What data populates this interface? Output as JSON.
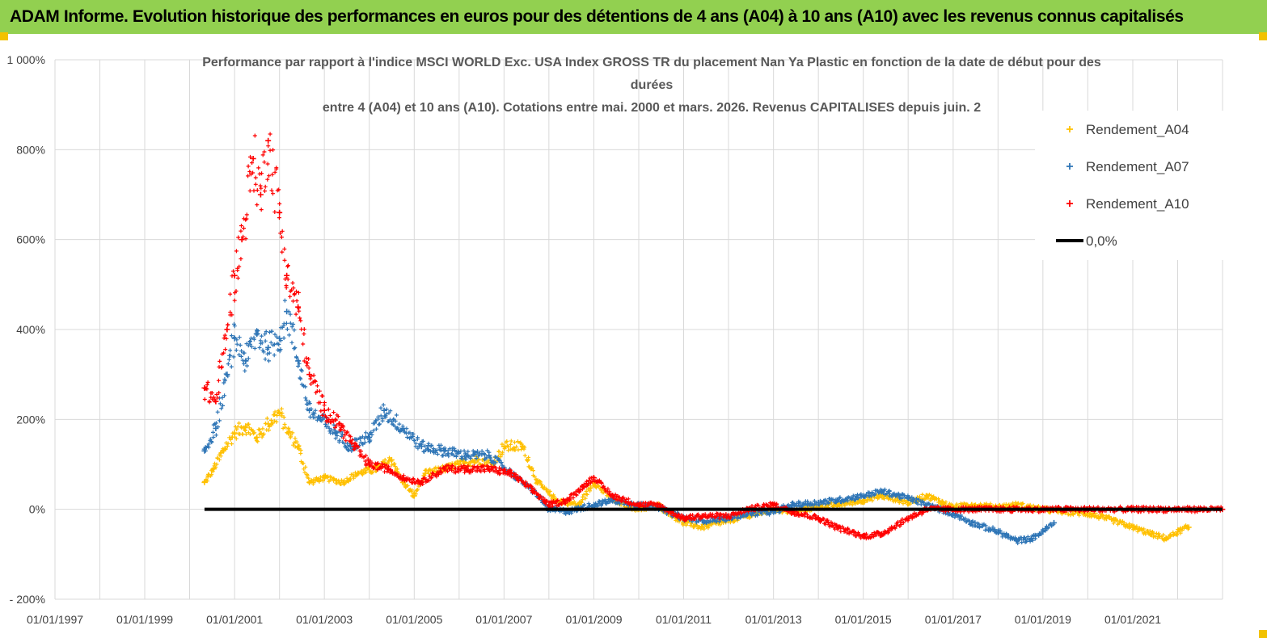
{
  "banner": {
    "text": "ADAM Informe. Evolution historique des performances en euros pour des détentions de 4 ans (A04) à 10 ans (A10) avec les revenus connus capitalisés"
  },
  "colors": {
    "banner_bg": "#92d050",
    "a04": "#ffc000",
    "a07": "#2e75b6",
    "a10": "#ff0000",
    "zero_line": "#000000",
    "grid": "#d9d9d9"
  },
  "chart_data": {
    "type": "scatter",
    "title_lines": [
      "Performance par rapport à l'indice MSCI WORLD Exc. USA Index GROSS TR  du placement Nan Ya Plastic  en fonction de la date de début pour des",
      "durées",
      "entre 4 (A04) et 10 ans (A10).  Cotations entre mai. 2000 et mars. 2026. Revenus CAPITALISES depuis juin. 2"
    ],
    "x_axis": {
      "type": "date",
      "range": [
        "1997-01-01",
        "2023-01-01"
      ],
      "tick_labels": [
        "01/01/1997",
        "01/01/1999",
        "01/01/2001",
        "01/01/2003",
        "01/01/2005",
        "01/01/2007",
        "01/01/2009",
        "01/01/2011",
        "01/01/2013",
        "01/01/2015",
        "01/01/2017",
        "01/01/2019",
        "01/01/2021"
      ],
      "gridlines": "every year"
    },
    "y_axis": {
      "range": [
        -200,
        1000
      ],
      "unit": "%",
      "tick_values": [
        -200,
        0,
        200,
        400,
        600,
        800,
        1000
      ],
      "tick_labels": [
        "- 200%",
        "0%",
        "200%",
        "400%",
        "600%",
        "800%",
        "1 000%"
      ]
    },
    "grid": true,
    "legend_position": "right",
    "series": [
      {
        "name": "Rendement_A04",
        "marker": "plus",
        "color": "#ffc000",
        "points": [
          [
            "2000-05-01",
            60
          ],
          [
            "2000-07-15",
            90
          ],
          [
            "2000-10-01",
            130
          ],
          [
            "2001-01-01",
            170
          ],
          [
            "2001-04-01",
            185
          ],
          [
            "2001-07-01",
            160
          ],
          [
            "2001-10-01",
            190
          ],
          [
            "2002-01-01",
            215
          ],
          [
            "2002-03-15",
            170
          ],
          [
            "2002-06-01",
            140
          ],
          [
            "2002-09-01",
            60
          ],
          [
            "2003-01-01",
            70
          ],
          [
            "2003-06-01",
            60
          ],
          [
            "2003-10-01",
            80
          ],
          [
            "2004-03-01",
            90
          ],
          [
            "2004-07-01",
            110
          ],
          [
            "2004-10-01",
            60
          ],
          [
            "2005-01-01",
            30
          ],
          [
            "2005-04-01",
            80
          ],
          [
            "2005-09-01",
            90
          ],
          [
            "2006-01-01",
            100
          ],
          [
            "2006-06-01",
            110
          ],
          [
            "2006-10-01",
            100
          ],
          [
            "2007-01-01",
            140
          ],
          [
            "2007-06-01",
            140
          ],
          [
            "2007-10-01",
            60
          ],
          [
            "2008-03-01",
            20
          ],
          [
            "2008-09-01",
            10
          ],
          [
            "2009-01-01",
            60
          ],
          [
            "2009-06-01",
            20
          ],
          [
            "2010-01-01",
            0
          ],
          [
            "2010-06-01",
            10
          ],
          [
            "2011-01-01",
            -30
          ],
          [
            "2011-06-01",
            -40
          ],
          [
            "2012-01-01",
            -25
          ],
          [
            "2012-06-01",
            -15
          ],
          [
            "2013-01-01",
            0
          ],
          [
            "2013-06-01",
            -5
          ],
          [
            "2014-01-01",
            5
          ],
          [
            "2014-06-01",
            10
          ],
          [
            "2015-01-01",
            20
          ],
          [
            "2015-06-01",
            30
          ],
          [
            "2016-01-01",
            15
          ],
          [
            "2016-06-01",
            30
          ],
          [
            "2017-01-01",
            5
          ],
          [
            "2017-06-01",
            10
          ],
          [
            "2018-01-01",
            5
          ],
          [
            "2018-06-01",
            10
          ],
          [
            "2019-01-01",
            0
          ],
          [
            "2019-06-01",
            -5
          ],
          [
            "2020-01-01",
            -10
          ],
          [
            "2020-06-01",
            -20
          ],
          [
            "2021-01-01",
            -40
          ],
          [
            "2021-06-01",
            -55
          ],
          [
            "2021-10-01",
            -65
          ],
          [
            "2022-01-01",
            -50
          ],
          [
            "2022-04-01",
            -40
          ]
        ]
      },
      {
        "name": "Rendement_A07",
        "marker": "plus",
        "color": "#2e75b6",
        "points": [
          [
            "2000-05-01",
            130
          ],
          [
            "2000-08-01",
            180
          ],
          [
            "2000-11-01",
            300
          ],
          [
            "2001-01-01",
            380
          ],
          [
            "2001-04-01",
            330
          ],
          [
            "2001-07-01",
            390
          ],
          [
            "2001-10-01",
            360
          ],
          [
            "2002-01-01",
            380
          ],
          [
            "2002-03-01",
            440
          ],
          [
            "2002-06-01",
            330
          ],
          [
            "2002-09-01",
            220
          ],
          [
            "2002-12-01",
            200
          ],
          [
            "2003-04-01",
            170
          ],
          [
            "2003-08-01",
            140
          ],
          [
            "2004-01-01",
            160
          ],
          [
            "2004-05-01",
            220
          ],
          [
            "2004-10-01",
            180
          ],
          [
            "2005-03-01",
            140
          ],
          [
            "2005-09-01",
            130
          ],
          [
            "2006-03-01",
            120
          ],
          [
            "2006-09-01",
            120
          ],
          [
            "2007-03-01",
            80
          ],
          [
            "2007-09-01",
            40
          ],
          [
            "2008-01-01",
            0
          ],
          [
            "2008-06-01",
            -5
          ],
          [
            "2009-01-01",
            10
          ],
          [
            "2009-06-01",
            20
          ],
          [
            "2010-01-01",
            10
          ],
          [
            "2010-06-01",
            5
          ],
          [
            "2011-01-01",
            -20
          ],
          [
            "2011-06-01",
            -25
          ],
          [
            "2012-01-01",
            -20
          ],
          [
            "2012-06-01",
            -10
          ],
          [
            "2013-01-01",
            -5
          ],
          [
            "2013-06-01",
            10
          ],
          [
            "2014-01-01",
            15
          ],
          [
            "2014-06-01",
            20
          ],
          [
            "2015-01-01",
            30
          ],
          [
            "2015-06-01",
            40
          ],
          [
            "2016-01-01",
            25
          ],
          [
            "2016-06-01",
            10
          ],
          [
            "2017-01-01",
            -10
          ],
          [
            "2017-06-01",
            -30
          ],
          [
            "2018-01-01",
            -50
          ],
          [
            "2018-06-01",
            -70
          ],
          [
            "2018-10-01",
            -65
          ],
          [
            "2019-01-01",
            -50
          ],
          [
            "2019-04-01",
            -30
          ]
        ]
      },
      {
        "name": "Rendement_A10",
        "marker": "plus",
        "color": "#ff0000",
        "points": [
          [
            "2000-05-01",
            270
          ],
          [
            "2000-08-01",
            240
          ],
          [
            "2000-11-01",
            400
          ],
          [
            "2001-01-01",
            520
          ],
          [
            "2001-03-01",
            600
          ],
          [
            "2001-06-01",
            780
          ],
          [
            "2001-08-01",
            700
          ],
          [
            "2001-10-01",
            820
          ],
          [
            "2002-01-01",
            660
          ],
          [
            "2002-03-01",
            520
          ],
          [
            "2002-06-01",
            450
          ],
          [
            "2002-09-01",
            300
          ],
          [
            "2003-01-01",
            220
          ],
          [
            "2003-05-01",
            190
          ],
          [
            "2003-09-01",
            140
          ],
          [
            "2004-01-01",
            100
          ],
          [
            "2004-06-01",
            90
          ],
          [
            "2004-10-01",
            70
          ],
          [
            "2005-03-01",
            60
          ],
          [
            "2005-09-01",
            90
          ],
          [
            "2006-03-01",
            90
          ],
          [
            "2006-09-01",
            90
          ],
          [
            "2007-03-01",
            80
          ],
          [
            "2007-09-01",
            40
          ],
          [
            "2008-01-01",
            10
          ],
          [
            "2008-06-01",
            20
          ],
          [
            "2008-10-01",
            50
          ],
          [
            "2009-01-01",
            70
          ],
          [
            "2009-06-01",
            30
          ],
          [
            "2010-01-01",
            10
          ],
          [
            "2010-06-01",
            10
          ],
          [
            "2011-01-01",
            -20
          ],
          [
            "2011-06-01",
            -15
          ],
          [
            "2012-01-01",
            -15
          ],
          [
            "2012-06-01",
            0
          ],
          [
            "2013-01-01",
            10
          ],
          [
            "2013-06-01",
            -5
          ],
          [
            "2014-01-01",
            -20
          ],
          [
            "2014-06-01",
            -40
          ],
          [
            "2015-01-01",
            -60
          ],
          [
            "2015-06-01",
            -55
          ],
          [
            "2016-01-01",
            -20
          ],
          [
            "2016-06-01",
            0
          ],
          [
            "2017-01-01",
            0
          ],
          [
            "2018-01-01",
            0
          ],
          [
            "2019-01-01",
            0
          ],
          [
            "2020-01-01",
            0
          ],
          [
            "2021-01-01",
            0
          ],
          [
            "2022-01-01",
            0
          ],
          [
            "2022-12-31",
            0
          ]
        ]
      },
      {
        "name": "0,0%",
        "marker": "line",
        "color": "#000000",
        "points": [
          [
            "2000-05-01",
            0
          ],
          [
            "2022-12-31",
            0
          ]
        ]
      }
    ]
  }
}
